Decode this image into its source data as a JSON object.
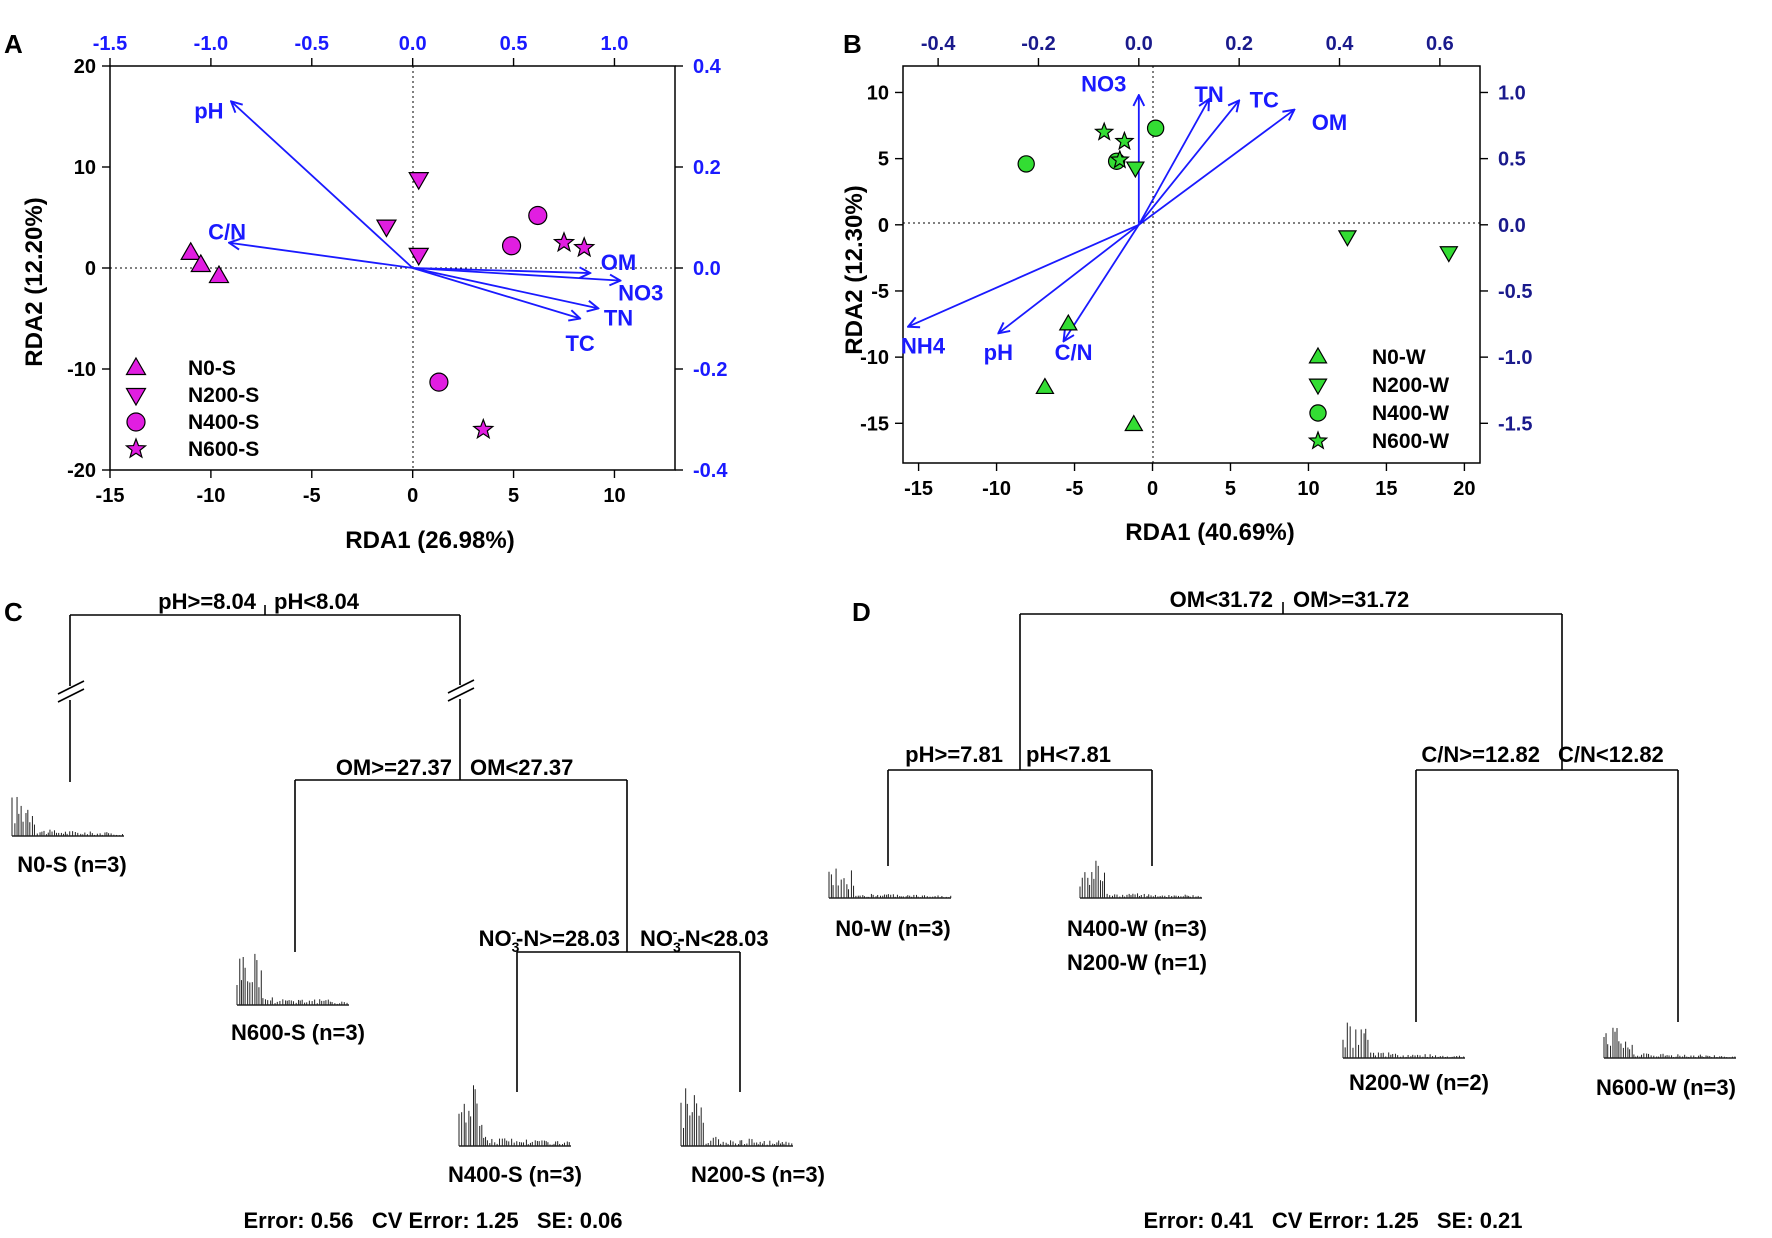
{
  "panels": {
    "A": "A",
    "B": "B",
    "C": "C",
    "D": "D"
  },
  "colors": {
    "blue": "#1a1aff",
    "navy": "#1a1a8c",
    "magenta": "#e11ee1",
    "green": "#33dd33",
    "black": "#000000",
    "gray": "#555555"
  },
  "chart_data": [
    {
      "id": "A",
      "type": "scatter",
      "subtype": "rda-biplot",
      "xlabel": "RDA1 (26.98%)",
      "ylabel": "RDA2 (12.20%)",
      "xlim": [
        -15,
        13
      ],
      "ylim": [
        -20,
        20
      ],
      "xticks": [
        "-15",
        "-10",
        "-5",
        "0",
        "5",
        "10"
      ],
      "xtick_vals": [
        -15,
        -10,
        -5,
        0,
        5,
        10
      ],
      "yticks": [
        "-20",
        "-10",
        "0",
        "10",
        "20"
      ],
      "ytick_vals": [
        -20,
        -10,
        0,
        10,
        20
      ],
      "top_ticks": [
        "-1.5",
        "-1.0",
        "-0.5",
        "0.0",
        "0.5",
        "1.0"
      ],
      "top_tick_vals": [
        -1.5,
        -1.0,
        -0.5,
        0.0,
        0.5,
        1.0
      ],
      "top_lim": [
        -1.5,
        1.3
      ],
      "right_ticks": [
        "-0.4",
        "-0.2",
        "0.0",
        "0.2",
        "0.4"
      ],
      "right_tick_vals": [
        -0.4,
        -0.2,
        0.0,
        0.2,
        0.4
      ],
      "right_lim": [
        -0.4,
        0.4
      ],
      "legend_position": "bottom-left",
      "series": [
        {
          "name": "N0-S",
          "marker": "triangle-up",
          "points": [
            [
              -11,
              1.5
            ],
            [
              -10.5,
              0.3
            ],
            [
              -9.6,
              -0.8
            ]
          ]
        },
        {
          "name": "N200-S",
          "marker": "triangle-down",
          "points": [
            [
              0.3,
              8.8
            ],
            [
              -1.3,
              4.1
            ],
            [
              0.3,
              1.3
            ]
          ]
        },
        {
          "name": "N400-S",
          "marker": "circle",
          "points": [
            [
              6.2,
              5.2
            ],
            [
              4.9,
              2.2
            ],
            [
              1.3,
              -11.3
            ]
          ]
        },
        {
          "name": "N600-S",
          "marker": "star",
          "points": [
            [
              7.5,
              2.5
            ],
            [
              8.5,
              2.0
            ],
            [
              3.5,
              -16.0
            ]
          ]
        }
      ],
      "arrows": [
        {
          "label": "pH",
          "end": [
            -0.9,
            0.33
          ],
          "label_at": [
            -1.01,
            0.31
          ]
        },
        {
          "label": "C/N",
          "end": [
            -0.91,
            0.05
          ],
          "label_at": [
            -0.92,
            0.07
          ]
        },
        {
          "label": "OM",
          "end": [
            0.88,
            -0.01
          ],
          "label_at": [
            1.02,
            0.01
          ]
        },
        {
          "label": "NO3",
          "end": [
            1.03,
            -0.025
          ],
          "label_at": [
            1.13,
            -0.05
          ]
        },
        {
          "label": "TN",
          "end": [
            0.92,
            -0.08
          ],
          "label_at": [
            1.02,
            -0.1
          ]
        },
        {
          "label": "TC",
          "end": [
            0.83,
            -0.1
          ],
          "label_at": [
            0.83,
            -0.15
          ]
        }
      ]
    },
    {
      "id": "B",
      "type": "scatter",
      "subtype": "rda-biplot",
      "xlabel": "RDA1 (40.69%)",
      "ylabel": "RDA2 (12.30%)",
      "xlim": [
        -16,
        21
      ],
      "ylim": [
        -18,
        12
      ],
      "xticks": [
        "-15",
        "-10",
        "-5",
        "0",
        "5",
        "10",
        "15",
        "20"
      ],
      "xtick_vals": [
        -15,
        -10,
        -5,
        0,
        5,
        10,
        15,
        20
      ],
      "yticks": [
        "-15",
        "-10",
        "-5",
        "0",
        "5",
        "10"
      ],
      "ytick_vals": [
        -15,
        -10,
        -5,
        0,
        5,
        10
      ],
      "top_ticks": [
        "-0.4",
        "-0.2",
        "0.0",
        "0.2",
        "0.4",
        "0.6"
      ],
      "top_tick_vals": [
        -0.4,
        -0.2,
        0.0,
        0.2,
        0.4,
        0.6
      ],
      "top_lim": [
        -0.47,
        0.68
      ],
      "right_ticks": [
        "-1.5",
        "-1.0",
        "-0.5",
        "0.0",
        "0.5",
        "1.0"
      ],
      "right_tick_vals": [
        -1.5,
        -1.0,
        -0.5,
        0.0,
        0.5,
        1.0
      ],
      "right_lim": [
        -1.8,
        1.2
      ],
      "legend_position": "bottom-right",
      "series": [
        {
          "name": "N0-W",
          "marker": "triangle-up",
          "points": [
            [
              -5.4,
              -7.5
            ],
            [
              -6.9,
              -12.3
            ],
            [
              -1.2,
              -15.1
            ]
          ]
        },
        {
          "name": "N200-W",
          "marker": "triangle-down",
          "points": [
            [
              -1.1,
              4.3
            ],
            [
              12.5,
              -0.9
            ],
            [
              19.0,
              -2.1
            ]
          ]
        },
        {
          "name": "N400-W",
          "marker": "circle",
          "points": [
            [
              0.2,
              7.3
            ],
            [
              -8.1,
              4.6
            ],
            [
              -2.3,
              4.8
            ]
          ]
        },
        {
          "name": "N600-W",
          "marker": "star",
          "points": [
            [
              -3.1,
              7.0
            ],
            [
              -1.8,
              6.3
            ],
            [
              -2.1,
              4.9
            ]
          ]
        }
      ],
      "arrows": [
        {
          "label": "NO3",
          "end": [
            0.0,
            0.98
          ],
          "label_at": [
            -0.07,
            1.06
          ]
        },
        {
          "label": "TN",
          "end": [
            0.14,
            0.95
          ],
          "label_at": [
            0.14,
            0.98
          ]
        },
        {
          "label": "TC",
          "end": [
            0.2,
            0.94
          ],
          "label_at": [
            0.25,
            0.94
          ]
        },
        {
          "label": "OM",
          "end": [
            0.31,
            0.87
          ],
          "label_at": [
            0.38,
            0.77
          ]
        },
        {
          "label": "NH4",
          "end": [
            -0.46,
            -0.77
          ],
          "label_at": [
            -0.43,
            -0.92
          ]
        },
        {
          "label": "pH",
          "end": [
            -0.28,
            -0.82
          ],
          "label_at": [
            -0.28,
            -0.97
          ]
        },
        {
          "label": "C/N",
          "end": [
            -0.15,
            -0.88
          ],
          "label_at": [
            -0.13,
            -0.97
          ]
        }
      ]
    }
  ],
  "treeC": {
    "splits": [
      {
        "left": "pH>=8.04",
        "right": "pH<8.04"
      },
      {
        "left": "OM>=27.37",
        "right": "OM<27.37"
      },
      {
        "left_pre": "NO",
        "left_sub": "3",
        "left_sup": "-",
        "left_post": "-N>=28.03",
        "right_pre": "NO",
        "right_sub": "3",
        "right_sup": "-",
        "right_post": "-N<28.03"
      }
    ],
    "leaves": [
      "N0-S (n=3)",
      "N600-S (n=3)",
      "N400-S (n=3)",
      "N200-S (n=3)"
    ],
    "footer": "Error: 0.56   CV Error: 1.25   SE: 0.06"
  },
  "treeD": {
    "splits": [
      {
        "left": "OM<31.72",
        "right": "OM>=31.72"
      },
      {
        "left": "pH>=7.81",
        "right": "pH<7.81"
      },
      {
        "left": "C/N>=12.82",
        "right": "C/N<12.82"
      }
    ],
    "leaves": [
      "N0-W (n=3)",
      "N400-W (n=3)",
      "N200-W (n=1)",
      "N200-W (n=2)",
      "N600-W (n=3)"
    ],
    "footer": "Error: 0.41   CV Error: 1.25   SE: 0.21"
  }
}
